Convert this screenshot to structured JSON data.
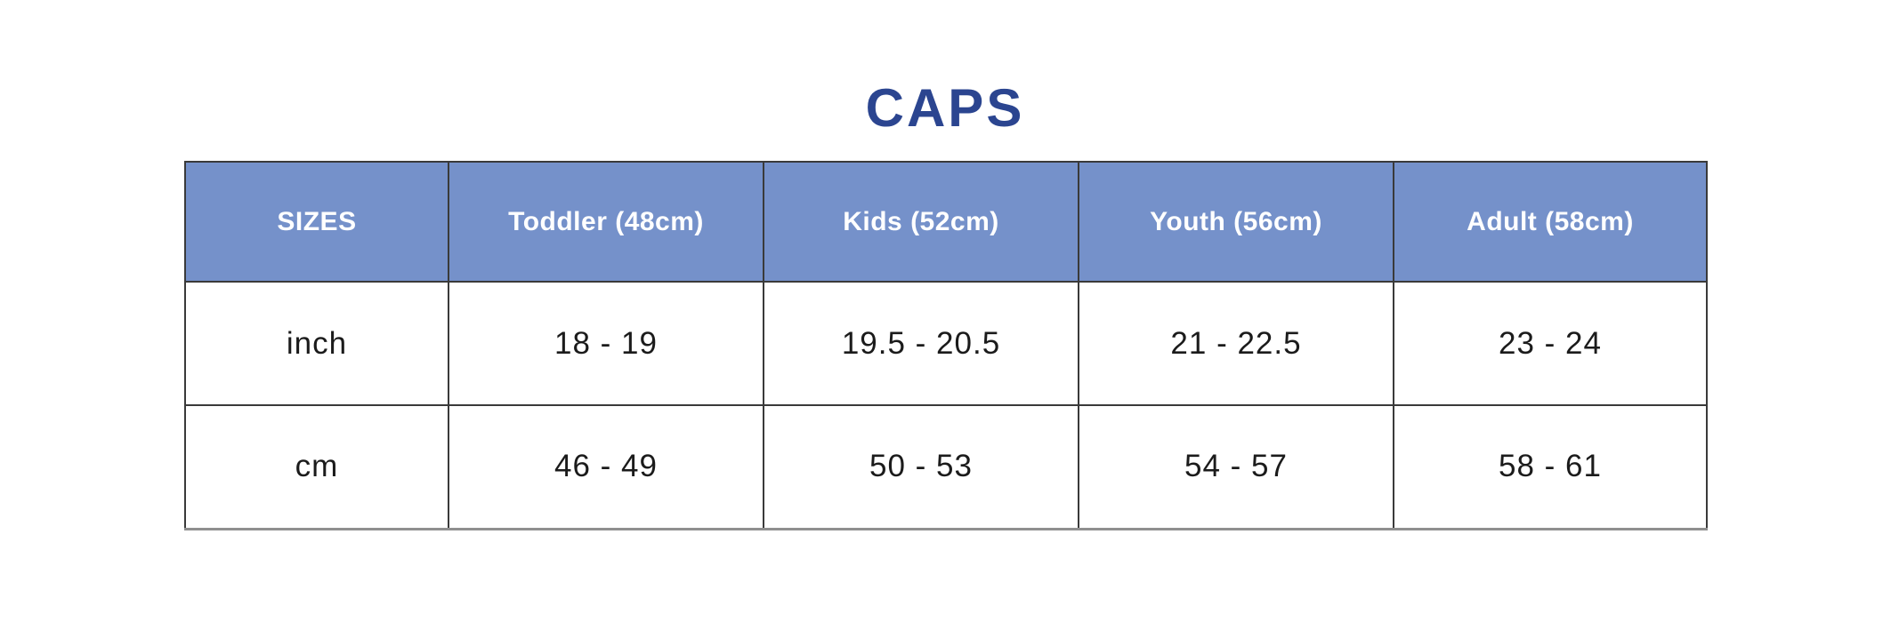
{
  "title": {
    "text": "CAPS"
  },
  "table": {
    "columns": [
      "SIZES",
      "Toddler (48cm)",
      "Kids (52cm)",
      "Youth (56cm)",
      "Adult (58cm)"
    ],
    "rows": [
      {
        "label": "inch",
        "values": [
          "18 - 19",
          "19.5 - 20.5",
          "21 - 22.5",
          "23 - 24"
        ]
      },
      {
        "label": "cm",
        "values": [
          "46 - 49",
          "50 - 53",
          "54 - 57",
          "58 - 61"
        ]
      }
    ]
  },
  "theme": {
    "title_color": "#2b4590",
    "header_bg": "#7591ca",
    "header_text": "#ffffff",
    "cell_text": "#1b1b1b",
    "grid_line": "#3a3a3a",
    "outer_bottom": "#8f8f8f",
    "page_bg": "#ffffff"
  },
  "chart_data": {
    "type": "table",
    "title": "CAPS",
    "columns": [
      "SIZES",
      "Toddler (48cm)",
      "Kids (52cm)",
      "Youth (56cm)",
      "Adult (58cm)"
    ],
    "rows": [
      [
        "inch",
        "18 - 19",
        "19.5 - 20.5",
        "21 - 22.5",
        "23 - 24"
      ],
      [
        "cm",
        "46 - 49",
        "50 - 53",
        "54 - 57",
        "58 - 61"
      ]
    ],
    "layout": {
      "title_position": "top-center",
      "header_row_shaded": true,
      "grid": true
    }
  }
}
